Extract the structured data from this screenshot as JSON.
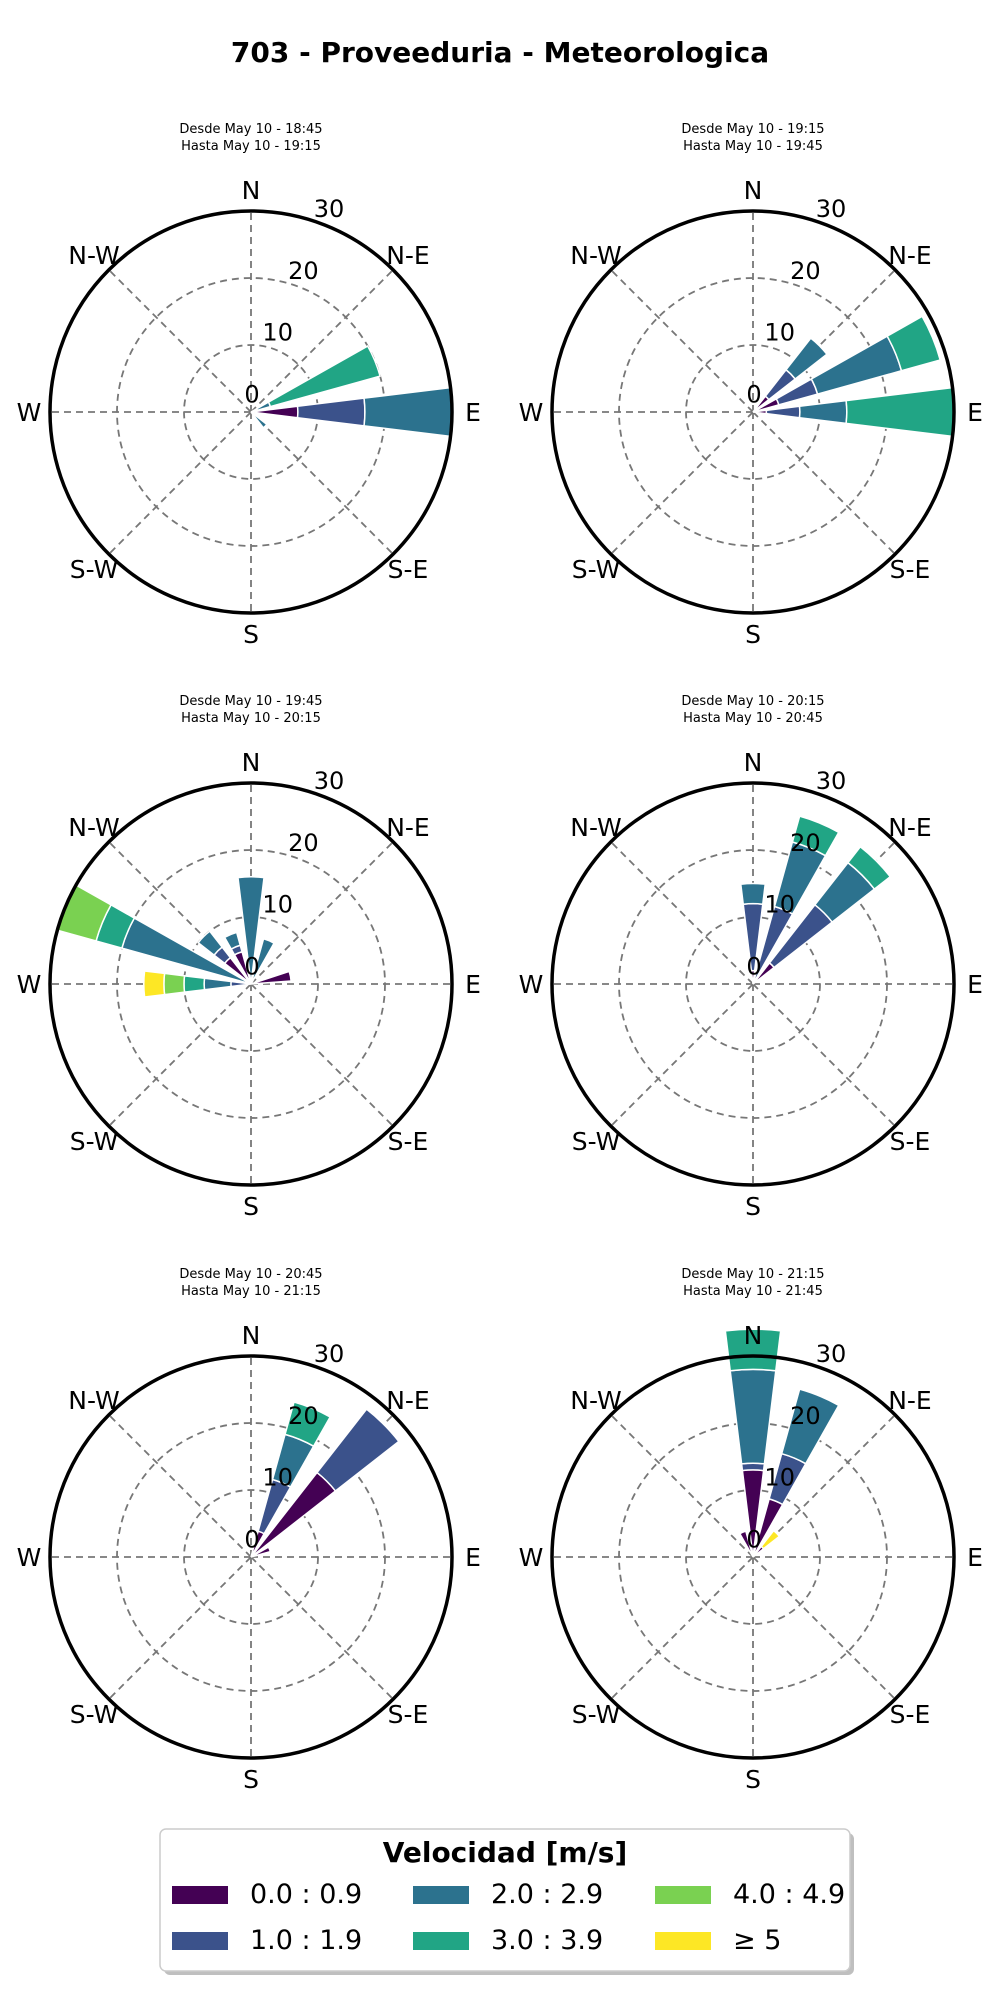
{
  "figure": {
    "title": "703 - Proveeduria - Meteorologica"
  },
  "directions": [
    "N",
    "N-E",
    "E",
    "S-E",
    "S",
    "S-W",
    "W",
    "N-W"
  ],
  "rticks": [
    "0",
    "10",
    "20",
    "30"
  ],
  "legend": {
    "title": "Velocidad [m/s]",
    "items": [
      {
        "label": "0.0 : 0.9",
        "color": "#440154"
      },
      {
        "label": "1.0 : 1.9",
        "color": "#3b528b"
      },
      {
        "label": "2.0 : 2.9",
        "color": "#2c728e"
      },
      {
        "label": "3.0 : 3.9",
        "color": "#21a585"
      },
      {
        "label": "4.0 : 4.9",
        "color": "#7ad151"
      },
      {
        "label": "≥ 5",
        "color": "#fde725"
      }
    ]
  },
  "chart_data": [
    {
      "type": "windrose",
      "subtitle": [
        "Desde May 10 - 18:45",
        "Hasta May 10 - 19:15"
      ],
      "rmax": 30,
      "bars": [
        {
          "direction_deg": 67.5,
          "stacks": [
            1,
            0,
            2,
            17
          ]
        },
        {
          "direction_deg": 90,
          "stacks": [
            7,
            10,
            13
          ]
        },
        {
          "direction_deg": 135,
          "stacks": [
            0,
            0,
            3
          ]
        }
      ]
    },
    {
      "type": "windrose",
      "subtitle": [
        "Desde May 10 - 19:15",
        "Hasta May 10 - 19:45"
      ],
      "rmax": 30,
      "bars": [
        {
          "direction_deg": 45,
          "stacks": [
            3,
            5,
            6
          ]
        },
        {
          "direction_deg": 67.5,
          "stacks": [
            4,
            6,
            13,
            6
          ]
        },
        {
          "direction_deg": 90,
          "stacks": [
            2,
            5,
            7,
            16
          ]
        }
      ]
    },
    {
      "type": "windrose",
      "subtitle": [
        "Desde May 10 - 19:45",
        "Hasta May 10 - 20:15"
      ],
      "rmax": 30,
      "bars": [
        {
          "direction_deg": 0,
          "stacks": [
            0,
            0,
            16
          ]
        },
        {
          "direction_deg": 22.5,
          "stacks": [
            0,
            0,
            7
          ]
        },
        {
          "direction_deg": 78.75,
          "stacks": [
            6
          ]
        },
        {
          "direction_deg": 292.5,
          "stacks": [
            0,
            0,
            20,
            4,
            6
          ]
        },
        {
          "direction_deg": 315,
          "stacks": [
            5,
            2,
            3
          ]
        },
        {
          "direction_deg": 337.5,
          "stacks": [
            5,
            1,
            2
          ]
        },
        {
          "direction_deg": 270,
          "stacks": [
            0,
            3,
            4,
            3,
            3,
            3
          ]
        }
      ]
    },
    {
      "type": "windrose",
      "subtitle": [
        "Desde May 10 - 20:15",
        "Hasta May 10 - 20:45"
      ],
      "rmax": 30,
      "bars": [
        {
          "direction_deg": 0,
          "stacks": [
            2,
            10,
            3
          ]
        },
        {
          "direction_deg": 22.5,
          "stacks": [
            0,
            12,
            10,
            4
          ]
        },
        {
          "direction_deg": 45,
          "stacks": [
            4,
            11,
            8,
            3
          ]
        }
      ]
    },
    {
      "type": "windrose",
      "subtitle": [
        "Desde May 10 - 20:45",
        "Hasta May 10 - 21:15"
      ],
      "rmax": 30,
      "bars": [
        {
          "direction_deg": 22.5,
          "stacks": [
            4,
            8,
            7,
            5
          ]
        },
        {
          "direction_deg": 45,
          "stacks": [
            16,
            12
          ]
        },
        {
          "direction_deg": 67.5,
          "stacks": [
            3
          ]
        }
      ]
    },
    {
      "type": "windrose",
      "subtitle": [
        "Desde May 10 - 21:15",
        "Hasta May 10 - 21:45"
      ],
      "rmax": 30,
      "bars": [
        {
          "direction_deg": 0,
          "stacks": [
            13,
            1,
            14,
            6
          ]
        },
        {
          "direction_deg": 22.5,
          "stacks": [
            9,
            7,
            10
          ]
        },
        {
          "direction_deg": 45,
          "stacks": [
            2,
            0,
            0,
            0,
            0,
            3
          ]
        },
        {
          "direction_deg": 337.5,
          "stacks": [
            4
          ]
        }
      ]
    }
  ]
}
